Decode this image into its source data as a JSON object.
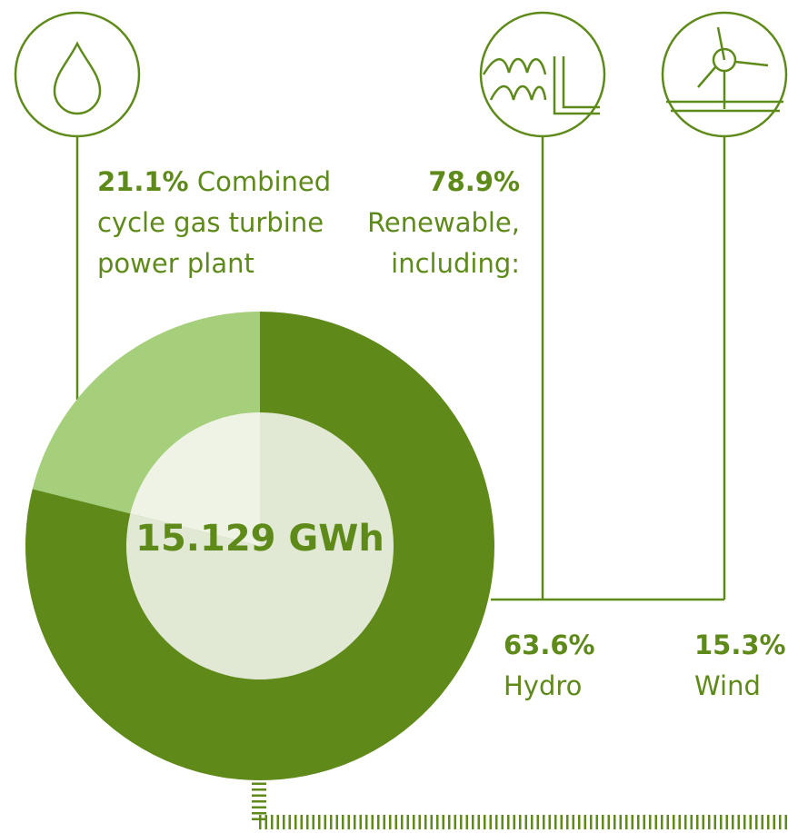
{
  "chart_data": {
    "type": "donut",
    "categories": [
      "Combined cycle gas turbine power plant",
      "Renewable, including:"
    ],
    "values": [
      21.1,
      78.9
    ],
    "value_labels": [
      "21.1%",
      "78.9%"
    ],
    "colors": [
      "#a6cf7b",
      "#5f8a1a"
    ],
    "inner_colors": [
      "#eef3e6",
      "#e1e8d3"
    ],
    "center_label": "15.129 GWh",
    "breakdown": {
      "categories": [
        "Hydro",
        "Wind"
      ],
      "values": [
        63.6,
        15.3
      ],
      "value_labels": [
        "63.6%",
        "15.3%"
      ]
    }
  }
}
